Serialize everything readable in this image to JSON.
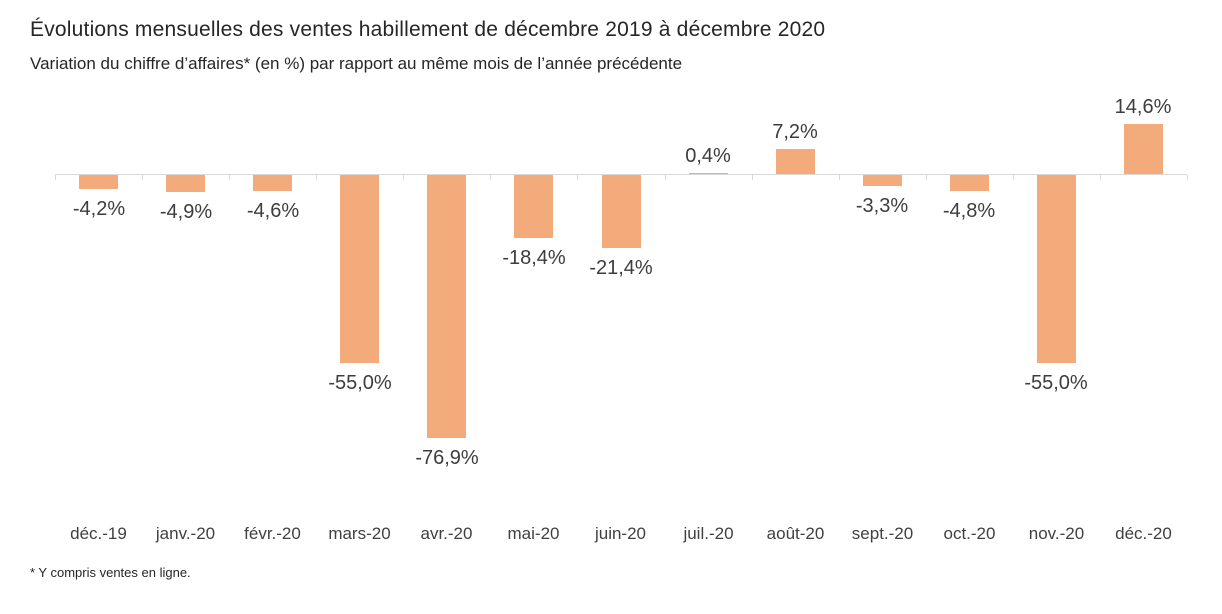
{
  "chart_data": {
    "type": "bar",
    "title": "Évolutions mensuelles des ventes habillement de décembre 2019 à décembre 2020",
    "subtitle": "Variation du chiffre d’affaires* (en %) par rapport au même mois de l’année précédente",
    "footnote": "* Y compris ventes en ligne.",
    "categories": [
      "déc.-19",
      "janv.-20",
      "févr.-20",
      "mars-20",
      "avr.-20",
      "mai-20",
      "juin-20",
      "juil.-20",
      "août-20",
      "sept.-20",
      "oct.-20",
      "nov.-20",
      "déc.-20"
    ],
    "values": [
      -4.2,
      -4.9,
      -4.6,
      -55.0,
      -76.9,
      -18.4,
      -21.4,
      0.4,
      7.2,
      -3.3,
      -4.8,
      -55.0,
      14.6
    ],
    "labels": [
      "-4,2%",
      "-4,9%",
      "-4,6%",
      "-55,0%",
      "-76,9%",
      "-18,4%",
      "-21,4%",
      "0,4%",
      "7,2%",
      "-3,3%",
      "-4,8%",
      "-55,0%",
      "14,6%"
    ],
    "xlabel": "",
    "ylabel": "",
    "ylim": [
      -80,
      20
    ],
    "grid": false,
    "legend": "none",
    "bar_color": "#F4AB7C",
    "axis_color": "#D9D9D9",
    "data_label_color": "#3d3d3d",
    "axis_label_color": "#404040"
  }
}
